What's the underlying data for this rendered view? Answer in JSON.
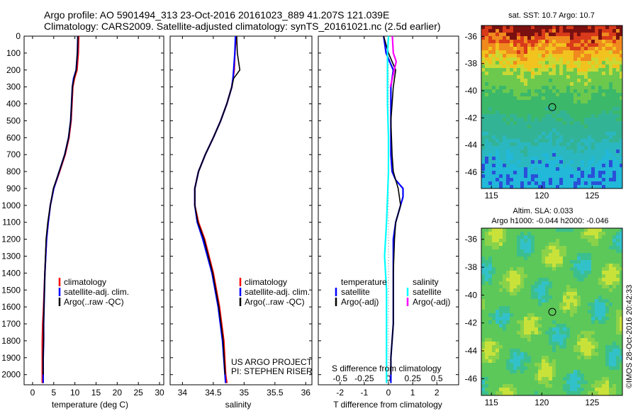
{
  "header": {
    "line1": "Argo profile: AO 5901494_313 23-Oct-2016 20161023_889 41.207S 121.039E",
    "line2": "Climatology: CARS2009. Satellite-adjusted climatology: synTS_20161021.nc (2.5d earlier)"
  },
  "colors": {
    "climatology": "#ff0000",
    "satellite": "#0000ff",
    "argo": "#000000",
    "sal_satellite": "#00ffff",
    "sal_argo": "#ff00ff"
  },
  "depth_axis": {
    "range": [
      0,
      2060
    ],
    "ticks": [
      0,
      100,
      200,
      300,
      400,
      500,
      600,
      700,
      800,
      900,
      1000,
      1100,
      1200,
      1300,
      1400,
      1500,
      1600,
      1700,
      1800,
      1900,
      2000
    ],
    "inverted": true
  },
  "panels": {
    "temperature": {
      "xlabel": "temperature (deg C)",
      "xlim": [
        -2,
        31
      ],
      "xticks": [
        0,
        5,
        10,
        15,
        20,
        25,
        30
      ],
      "legend": [
        "climatology",
        "satellite-adj. clim.",
        "Argo(..raw -QC)"
      ]
    },
    "salinity": {
      "xlabel": "salinity",
      "xlim": [
        33.8,
        36.1
      ],
      "xticks": [
        34,
        34.5,
        35,
        35.5,
        36
      ],
      "legend": [
        "climatology",
        "satellite-adj. clim.",
        "Argo(..raw -QC)"
      ],
      "footer1": "US ARGO PROJECT",
      "footer2": "PI: STEPHEN RISER"
    },
    "difference": {
      "xlabel": "T difference from climatology",
      "xlim": [
        -2.9,
        2.9
      ],
      "xticks": [
        -2,
        -1,
        0,
        1,
        2
      ],
      "top_label": "S difference from climatology",
      "top_ticks": [
        "-0.5",
        "-0.25",
        "0",
        "0.25",
        "0.5"
      ],
      "top_tick_values": [
        -0.5,
        -0.25,
        0,
        0.25,
        0.5
      ],
      "legend_t_title": "temperature",
      "legend_t": [
        "satellite",
        "Argo(-adj)"
      ],
      "legend_s_title": "salinity",
      "legend_s": [
        "satellite",
        "Argo(-adj)"
      ]
    }
  },
  "maps": {
    "sst_title": "sat. SST: 10.7  Argo: 10.7",
    "sla_title1": "Altim. SLA: 0.033",
    "sla_title2": "Argo h1000: -0.044  h2000: -0.046",
    "lon_ticks": [
      115,
      120,
      125
    ],
    "lat_ticks": [
      -36,
      -38,
      -40,
      -42,
      -44,
      -46
    ],
    "lon_range": [
      114,
      128
    ],
    "lat_range": [
      -47.2,
      -35.2
    ],
    "float_position": {
      "lon": 121.039,
      "lat": -41.207
    },
    "credit": "©IMOS 28-Oct-2016 20:42:33"
  },
  "chart_data": [
    {
      "type": "line",
      "title": "",
      "xlabel": "temperature (deg C)",
      "ylabel": "",
      "xlim": [
        -2,
        31
      ],
      "ylim": [
        2060,
        0
      ],
      "series": [
        {
          "name": "climatology",
          "color": "#ff0000",
          "x": [
            10.9,
            10.8,
            10.5,
            9.9,
            9.5,
            9.3,
            9.1,
            8.6,
            7.7,
            6.4,
            5.0,
            4.2,
            3.7,
            3.3,
            2.9,
            2.6,
            2.4,
            2.3,
            2.3,
            2.3,
            2.3
          ],
          "y": [
            0,
            100,
            200,
            250,
            300,
            400,
            500,
            600,
            700,
            800,
            900,
            1000,
            1100,
            1200,
            1400,
            1600,
            1700,
            1800,
            1900,
            2000,
            2050
          ]
        },
        {
          "name": "satellite-adj. clim.",
          "color": "#0000ff",
          "x": [
            10.7,
            10.6,
            10.3,
            9.7,
            9.4,
            9.2,
            9.0,
            8.5,
            7.6,
            6.3,
            5.0,
            4.2,
            3.7,
            3.3,
            2.9,
            2.7,
            2.6,
            2.6,
            2.5,
            2.5,
            2.5
          ],
          "y": [
            0,
            100,
            200,
            250,
            300,
            400,
            500,
            600,
            700,
            800,
            900,
            1000,
            1100,
            1200,
            1400,
            1600,
            1700,
            1800,
            1900,
            2000,
            2050
          ]
        },
        {
          "name": "Argo(..raw -QC)",
          "color": "#000000",
          "x": [
            10.7,
            10.6,
            10.3,
            9.8,
            9.4,
            9.2,
            9.0,
            8.5,
            7.6,
            6.3,
            4.9,
            4.2,
            3.6,
            3.2,
            2.9,
            2.7,
            2.6,
            2.6,
            2.5,
            2.5
          ],
          "y": [
            0,
            100,
            200,
            250,
            300,
            400,
            500,
            600,
            700,
            800,
            900,
            1000,
            1100,
            1200,
            1400,
            1600,
            1700,
            1800,
            1900,
            2000
          ]
        }
      ]
    },
    {
      "type": "line",
      "title": "",
      "xlabel": "salinity",
      "ylabel": "",
      "xlim": [
        33.8,
        36.1
      ],
      "ylim": [
        2060,
        0
      ],
      "series": [
        {
          "name": "climatology",
          "color": "#ff0000",
          "x": [
            34.87,
            34.85,
            34.84,
            34.82,
            34.8,
            34.72,
            34.62,
            34.5,
            34.37,
            34.26,
            34.2,
            34.2,
            34.26,
            34.36,
            34.5,
            34.6,
            34.67,
            34.7,
            34.72
          ],
          "y": [
            0,
            100,
            200,
            250,
            300,
            400,
            500,
            600,
            700,
            800,
            900,
            1000,
            1100,
            1200,
            1400,
            1600,
            1800,
            2000,
            2050
          ]
        },
        {
          "name": "satellite-adj. clim.",
          "color": "#0000ff",
          "x": [
            34.86,
            34.85,
            34.83,
            34.82,
            34.8,
            34.72,
            34.62,
            34.5,
            34.37,
            34.26,
            34.2,
            34.2,
            34.24,
            34.33,
            34.48,
            34.58,
            34.65,
            34.69,
            34.7
          ],
          "y": [
            0,
            100,
            200,
            250,
            300,
            400,
            500,
            600,
            700,
            800,
            900,
            1000,
            1100,
            1200,
            1400,
            1600,
            1800,
            2000,
            2050
          ]
        },
        {
          "name": "Argo(..raw -QC)",
          "color": "#000000",
          "x": [
            34.88,
            34.89,
            34.93,
            34.83,
            34.8,
            34.72,
            34.62,
            34.5,
            34.37,
            34.26,
            34.2,
            34.2,
            34.25,
            34.35,
            34.49,
            34.59,
            34.66,
            34.69
          ],
          "y": [
            0,
            100,
            200,
            250,
            300,
            400,
            500,
            600,
            700,
            800,
            900,
            1000,
            1100,
            1200,
            1400,
            1600,
            1800,
            2000
          ]
        }
      ]
    },
    {
      "type": "line",
      "title": "",
      "xlabel": "T difference from climatology",
      "ylabel": "",
      "xlim": [
        -2.9,
        2.9
      ],
      "ylim": [
        2060,
        0
      ],
      "series": [
        {
          "name": "temperature satellite",
          "color": "#0000ff",
          "x": [
            -0.2,
            -0.1,
            0.05,
            0.2,
            0.1,
            0.1,
            0.1,
            0.15,
            0.3,
            0.6,
            0.6,
            0.3,
            0.2,
            0.2,
            0.2,
            0.2,
            0.15,
            0.1,
            0.1
          ],
          "y": [
            0,
            100,
            150,
            200,
            300,
            500,
            700,
            800,
            850,
            900,
            950,
            1100,
            1200,
            1400,
            1600,
            1700,
            1800,
            1900,
            2050
          ]
        },
        {
          "name": "temperature Argo(-adj)",
          "color": "#000000",
          "x": [
            -0.2,
            0.0,
            0.3,
            0.2,
            0.1,
            0.15,
            0.2,
            0.4,
            0.5,
            0.3,
            0.25,
            0.2,
            0.2,
            0.2,
            0.15,
            0.1,
            0.1
          ],
          "y": [
            0,
            100,
            200,
            300,
            500,
            700,
            800,
            900,
            1000,
            1100,
            1200,
            1400,
            1600,
            1700,
            1800,
            1900,
            2000
          ]
        },
        {
          "name": "salinity satellite",
          "color": "#00ffff",
          "x": [
            0.0,
            -0.01,
            -0.01,
            -0.01,
            0.0,
            0.0,
            -0.02,
            -0.04,
            -0.02,
            -0.02,
            -0.02
          ],
          "y": [
            0,
            100,
            200,
            400,
            600,
            800,
            1100,
            1300,
            1500,
            1800,
            2050
          ]
        },
        {
          "name": "salinity Argo(-adj)",
          "color": "#ff00ff",
          "x": [
            0.04,
            0.05,
            0.08,
            0.06,
            0.04,
            0.02
          ],
          "y": [
            0,
            100,
            150,
            200,
            250,
            300
          ]
        }
      ]
    },
    {
      "type": "heatmap",
      "title": "sat. SST: 10.7  Argo: 10.7",
      "xlabel": "",
      "ylabel": "",
      "xlim": [
        114,
        128
      ],
      "ylim": [
        -47.2,
        -35.2
      ]
    },
    {
      "type": "heatmap",
      "title": "Altim. SLA: 0.033",
      "xlabel": "",
      "ylabel": "",
      "xlim": [
        114,
        128
      ],
      "ylim": [
        -47.2,
        -35.2
      ]
    }
  ]
}
